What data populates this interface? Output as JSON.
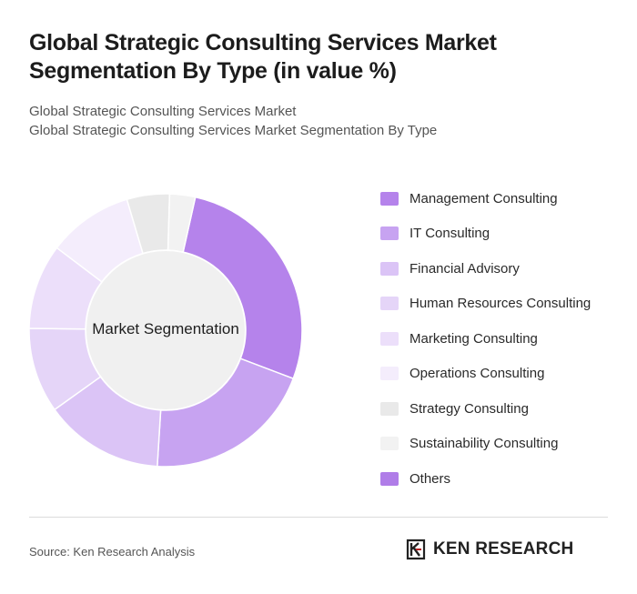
{
  "header": {
    "title": "Global Strategic Consulting Services Market Segmentation By Type (in value %)",
    "subtitle_1": "Global Strategic Consulting Services Market",
    "subtitle_2": "Global Strategic Consulting Services Market Segmentation By Type"
  },
  "chart_data": {
    "type": "pie",
    "variant": "donut",
    "center_label": "Market Segmentation",
    "legend_position": "right",
    "categories": [
      "Management Consulting",
      "IT Consulting",
      "Financial Advisory",
      "Human Resources Consulting",
      "Marketing Consulting",
      "Operations Consulting",
      "Strategy Consulting",
      "Sustainability Consulting",
      "Others"
    ],
    "values": [
      27,
      20,
      14,
      10,
      10,
      10,
      5,
      3,
      0
    ],
    "colors": [
      "#b583eb",
      "#c7a3f1",
      "#dbc4f6",
      "#e5d5f8",
      "#ecdffa",
      "#f4edfc",
      "#e9e9e9",
      "#f2f2f2",
      "#b07de8"
    ]
  },
  "footer": {
    "source": "Source: Ken Research Analysis",
    "logo_text": "KEN RESEARCH"
  }
}
